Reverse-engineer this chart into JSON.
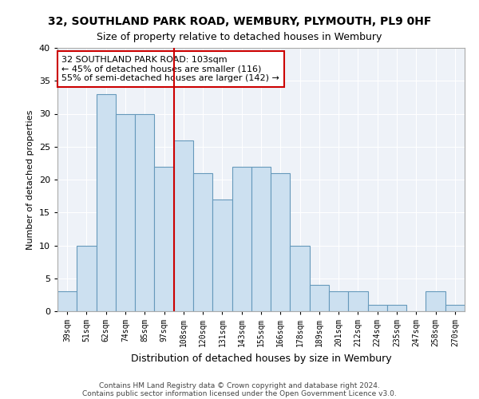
{
  "title1": "32, SOUTHLAND PARK ROAD, WEMBURY, PLYMOUTH, PL9 0HF",
  "title2": "Size of property relative to detached houses in Wembury",
  "xlabel": "Distribution of detached houses by size in Wembury",
  "ylabel": "Number of detached properties",
  "categories": [
    "39sqm",
    "51sqm",
    "62sqm",
    "74sqm",
    "85sqm",
    "97sqm",
    "108sqm",
    "120sqm",
    "131sqm",
    "143sqm",
    "155sqm",
    "166sqm",
    "178sqm",
    "189sqm",
    "201sqm",
    "212sqm",
    "224sqm",
    "235sqm",
    "247sqm",
    "258sqm",
    "270sqm"
  ],
  "values": [
    3,
    10,
    33,
    30,
    30,
    22,
    26,
    21,
    17,
    22,
    22,
    21,
    10,
    4,
    3,
    3,
    1,
    1,
    0,
    3,
    1
  ],
  "bar_color": "#cce0f0",
  "bar_edge_color": "#6699bb",
  "vline_x": 6.0,
  "vline_color": "#cc0000",
  "annotation_text": "32 SOUTHLAND PARK ROAD: 103sqm\n← 45% of detached houses are smaller (116)\n55% of semi-detached houses are larger (142) →",
  "annotation_box_color": "#ffffff",
  "annotation_box_edge": "#cc0000",
  "ylim": [
    0,
    40
  ],
  "yticks": [
    0,
    5,
    10,
    15,
    20,
    25,
    30,
    35,
    40
  ],
  "footnote1": "Contains HM Land Registry data © Crown copyright and database right 2024.",
  "footnote2": "Contains public sector information licensed under the Open Government Licence v3.0.",
  "background_color": "#eef2f8",
  "grid_color": "#ffffff"
}
